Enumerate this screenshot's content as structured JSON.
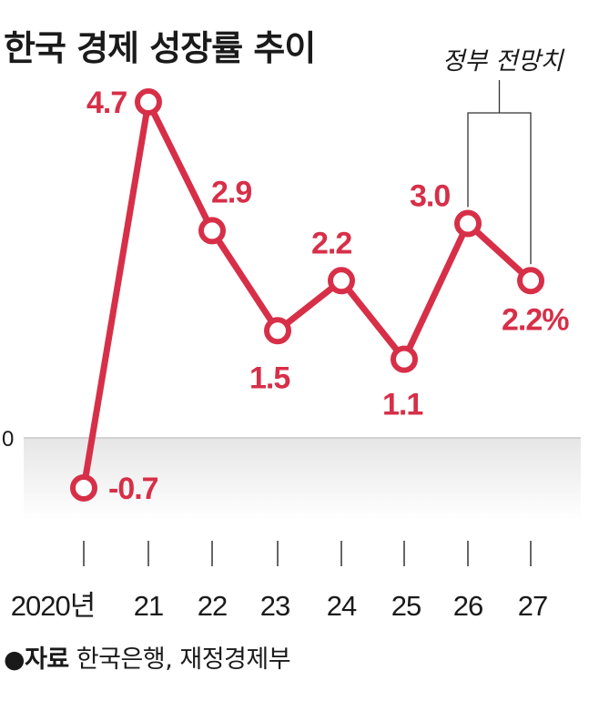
{
  "title": "한국 경제 성장률 추이",
  "source": {
    "bullet": "●",
    "label": "자료",
    "text": "한국은행, 재정경제부"
  },
  "colors": {
    "series": "#d72f48",
    "text": "#1a1a1a",
    "negative_band": "#efefef"
  },
  "chart_data": {
    "type": "line",
    "title": "한국 경제 성장률 추이",
    "xlabel": "",
    "ylabel": "",
    "categories": [
      "2020년",
      "21",
      "22",
      "23",
      "24",
      "25",
      "26",
      "27"
    ],
    "y_tick_labels": [
      "0"
    ],
    "series": [
      {
        "values": [
          -0.7,
          4.7,
          2.9,
          1.5,
          2.2,
          1.1,
          3.0,
          2.2
        ]
      }
    ],
    "data_labels": [
      "-0.7",
      "4.7",
      "2.9",
      "1.5",
      "2.2",
      "1.1",
      "3.0",
      "2.2%"
    ],
    "annotation": {
      "text": "정부 전망치",
      "span": [
        "26",
        "27"
      ]
    },
    "grid": false,
    "legend": "none"
  }
}
